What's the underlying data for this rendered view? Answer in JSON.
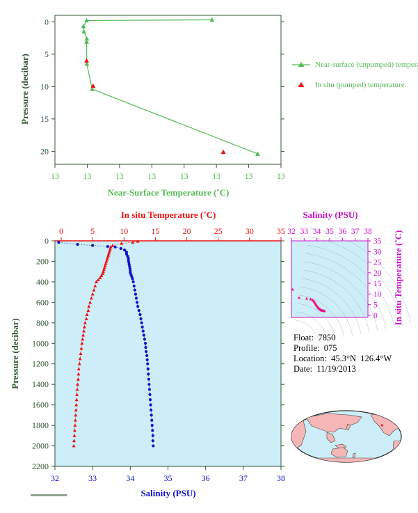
{
  "colors": {
    "near_surface": "#55bb55",
    "insitu_temp": "#ee1111",
    "salinity": "#1111cc",
    "salinity_axis": "#cc11cc",
    "profile_bg": "#cdeef8",
    "axis_dark": "#335533",
    "land": "#f4b6b6",
    "ocean": "#cdeef8"
  },
  "info": {
    "float_label": "Float:",
    "float_value": "7850",
    "profile_label": "Profile:",
    "profile_value": "075",
    "location_label": "Location:",
    "location_value": "45.3°N  126.4°W",
    "date_label": "Date:",
    "date_value": "11/19/2013"
  },
  "chart_data": [
    {
      "type": "line",
      "title": "",
      "xlabel": "Near-Surface Temperature (˚C)",
      "ylabel": "Pressure (decibar)",
      "x_tick_labels": [
        "13",
        "13",
        "13",
        "13",
        "13",
        "13",
        "13",
        "13"
      ],
      "y_ticks": [
        0,
        5,
        10,
        15,
        20
      ],
      "ylim": [
        22,
        -1
      ],
      "legend_placement": "right",
      "series": [
        {
          "name": "Near-surface (unpumped) temperature.",
          "marker": "triangle",
          "line": true,
          "points": [
            {
              "x_frac": 0.695,
              "p": -0.3
            },
            {
              "x_frac": 0.14,
              "p": -0.2
            },
            {
              "x_frac": 0.126,
              "p": 0.7
            },
            {
              "x_frac": 0.128,
              "p": 1.5
            },
            {
              "x_frac": 0.141,
              "p": 2.6
            },
            {
              "x_frac": 0.14,
              "p": 3.1
            },
            {
              "x_frac": 0.141,
              "p": 6.5
            },
            {
              "x_frac": 0.165,
              "p": 10.4
            },
            {
              "x_frac": 0.897,
              "p": 20.4
            }
          ]
        },
        {
          "name": "In situ (pumped) temperature.",
          "marker": "triangle",
          "line": false,
          "points": [
            {
              "x_frac": 0.14,
              "p": 6.0
            },
            {
              "x_frac": 0.169,
              "p": 9.9
            },
            {
              "x_frac": 0.745,
              "p": 20.1
            }
          ]
        }
      ]
    },
    {
      "type": "line",
      "title": "",
      "xlabel_top": "In situ Temperature (˚C)",
      "xlabel_bottom": "Salinity (PSU)",
      "ylabel": "Pressure (decibar)",
      "temp_ticks": [
        0,
        5,
        10,
        15,
        20,
        25,
        30,
        35
      ],
      "temp_xlim": [
        -1,
        35
      ],
      "sal_ticks": [
        32,
        33,
        34,
        35,
        36,
        37,
        38
      ],
      "sal_xlim": [
        32,
        38
      ],
      "p_ticks": [
        0,
        200,
        400,
        600,
        800,
        1000,
        1200,
        1400,
        1600,
        1800,
        2000,
        2200
      ],
      "ylim": [
        2200,
        0
      ],
      "series": [
        {
          "name": "In situ Temperature",
          "axis": "temperature",
          "points": [
            [
              12.2,
              5
            ],
            [
              11.4,
              15
            ],
            [
              9.6,
              25
            ],
            [
              8.2,
              45
            ],
            [
              7.9,
              60
            ],
            [
              7.8,
              80
            ],
            [
              7.7,
              100
            ],
            [
              7.6,
              120
            ],
            [
              7.5,
              140
            ],
            [
              7.4,
              160
            ],
            [
              7.3,
              180
            ],
            [
              7.2,
              200
            ],
            [
              7.1,
              220
            ],
            [
              7.0,
              240
            ],
            [
              6.9,
              260
            ],
            [
              6.8,
              280
            ],
            [
              6.7,
              300
            ],
            [
              6.6,
              320
            ],
            [
              6.4,
              340
            ],
            [
              6.2,
              360
            ],
            [
              5.9,
              380
            ],
            [
              5.6,
              400
            ],
            [
              5.4,
              440
            ],
            [
              5.2,
              480
            ],
            [
              5.0,
              520
            ],
            [
              4.8,
              560
            ],
            [
              4.6,
              600
            ],
            [
              4.4,
              640
            ],
            [
              4.3,
              680
            ],
            [
              4.1,
              720
            ],
            [
              4.0,
              760
            ],
            [
              3.8,
              800
            ],
            [
              3.7,
              840
            ],
            [
              3.6,
              880
            ],
            [
              3.5,
              920
            ],
            [
              3.4,
              960
            ],
            [
              3.3,
              1000
            ],
            [
              3.2,
              1050
            ],
            [
              3.1,
              1100
            ],
            [
              3.0,
              1150
            ],
            [
              2.9,
              1200
            ],
            [
              2.8,
              1250
            ],
            [
              2.75,
              1300
            ],
            [
              2.7,
              1350
            ],
            [
              2.6,
              1400
            ],
            [
              2.55,
              1450
            ],
            [
              2.5,
              1500
            ],
            [
              2.45,
              1550
            ],
            [
              2.4,
              1600
            ],
            [
              2.35,
              1650
            ],
            [
              2.3,
              1700
            ],
            [
              2.25,
              1750
            ],
            [
              2.2,
              1800
            ],
            [
              2.15,
              1850
            ],
            [
              2.1,
              1900
            ],
            [
              2.05,
              1950
            ],
            [
              2.0,
              2000
            ]
          ]
        },
        {
          "name": "Salinity",
          "axis": "salinity",
          "points": [
            [
              32.1,
              15
            ],
            [
              32.6,
              35
            ],
            [
              33.0,
              45
            ],
            [
              33.4,
              55
            ],
            [
              33.6,
              60
            ],
            [
              33.75,
              75
            ],
            [
              33.85,
              90
            ],
            [
              33.9,
              110
            ],
            [
              33.9,
              130
            ],
            [
              33.93,
              150
            ],
            [
              33.95,
              170
            ],
            [
              33.95,
              190
            ],
            [
              33.96,
              210
            ],
            [
              33.97,
              230
            ],
            [
              33.98,
              250
            ],
            [
              33.99,
              270
            ],
            [
              34.0,
              290
            ],
            [
              34.0,
              310
            ],
            [
              34.02,
              330
            ],
            [
              34.04,
              350
            ],
            [
              34.06,
              370
            ],
            [
              34.08,
              400
            ],
            [
              34.1,
              440
            ],
            [
              34.12,
              480
            ],
            [
              34.14,
              520
            ],
            [
              34.16,
              560
            ],
            [
              34.18,
              600
            ],
            [
              34.2,
              640
            ],
            [
              34.23,
              680
            ],
            [
              34.26,
              720
            ],
            [
              34.28,
              760
            ],
            [
              34.3,
              800
            ],
            [
              34.32,
              840
            ],
            [
              34.34,
              880
            ],
            [
              34.36,
              920
            ],
            [
              34.38,
              960
            ],
            [
              34.4,
              1000
            ],
            [
              34.41,
              1040
            ],
            [
              34.42,
              1080
            ],
            [
              34.44,
              1120
            ],
            [
              34.45,
              1160
            ],
            [
              34.46,
              1200
            ],
            [
              34.47,
              1250
            ],
            [
              34.48,
              1300
            ],
            [
              34.49,
              1350
            ],
            [
              34.5,
              1400
            ],
            [
              34.51,
              1450
            ],
            [
              34.52,
              1500
            ],
            [
              34.53,
              1550
            ],
            [
              34.54,
              1600
            ],
            [
              34.55,
              1650
            ],
            [
              34.56,
              1700
            ],
            [
              34.57,
              1750
            ],
            [
              34.58,
              1800
            ],
            [
              34.59,
              1850
            ],
            [
              34.6,
              1900
            ],
            [
              34.6,
              1950
            ],
            [
              34.61,
              2000
            ]
          ]
        }
      ]
    },
    {
      "type": "scatter",
      "title": "",
      "xlabel": "Salinity (PSU)",
      "ylabel": "In situ Temperature (˚C)",
      "x_ticks": [
        32,
        33,
        34,
        35,
        36,
        37,
        38
      ],
      "xlim": [
        32,
        38
      ],
      "y_ticks": [
        0,
        5,
        10,
        15,
        20,
        25,
        30,
        35
      ],
      "ylim": [
        -1,
        35
      ],
      "points": [
        [
          32.1,
          12.2
        ],
        [
          32.6,
          8.3
        ],
        [
          33.2,
          7.9
        ],
        [
          33.5,
          7.6
        ],
        [
          33.65,
          7.2
        ],
        [
          33.75,
          6.8
        ],
        [
          33.8,
          6.3
        ],
        [
          33.85,
          5.8
        ],
        [
          33.9,
          5.3
        ],
        [
          33.95,
          4.8
        ],
        [
          34.0,
          4.4
        ],
        [
          34.05,
          4.0
        ],
        [
          34.1,
          3.6
        ],
        [
          34.15,
          3.3
        ],
        [
          34.2,
          3.0
        ],
        [
          34.25,
          2.8
        ],
        [
          34.3,
          2.6
        ],
        [
          34.35,
          2.4
        ],
        [
          34.4,
          2.3
        ],
        [
          34.45,
          2.2
        ],
        [
          34.5,
          2.1
        ],
        [
          34.55,
          2.05
        ],
        [
          34.6,
          2.0
        ]
      ]
    }
  ]
}
